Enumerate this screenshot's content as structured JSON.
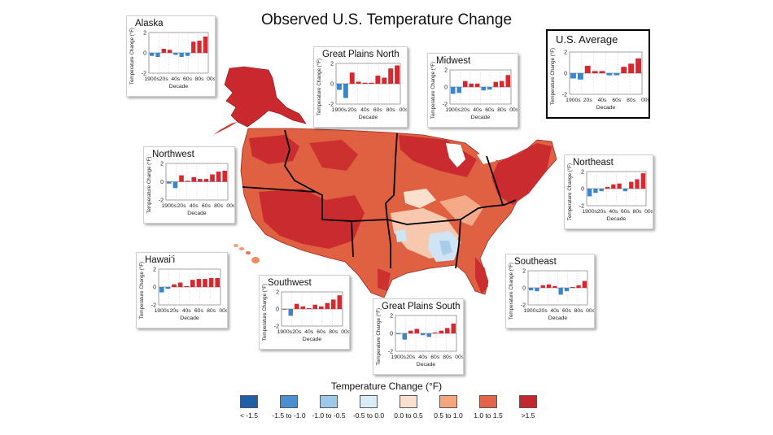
{
  "title": "Observed U.S. Temperature Change",
  "panels": [
    {
      "id": "alaska",
      "title": "Alaska",
      "ylabel": "Temperature Change (°F)",
      "xlabel": "Decade",
      "yticks": [
        "2",
        "0",
        "-2"
      ],
      "xticks": [
        "1900s",
        "20s",
        "40s",
        "60s",
        "80s",
        "00s"
      ],
      "values": [
        -0.3,
        -0.4,
        0.4,
        0.3,
        -0.2,
        -0.4,
        -0.3,
        1.1,
        1.2,
        1.6
      ]
    },
    {
      "id": "great-plains-north",
      "title": "Great Plains North",
      "ylabel": "Temperature Change (°F)",
      "xlabel": "Decade",
      "yticks": [
        "2",
        "0",
        "-2"
      ],
      "xticks": [
        "1900s",
        "20s",
        "40s",
        "60s",
        "80s",
        "00s"
      ],
      "values": [
        -0.6,
        -1.4,
        1.1,
        0.2,
        0.1,
        0.1,
        0.8,
        0.6,
        1.5,
        1.8
      ]
    },
    {
      "id": "midwest",
      "title": "Midwest",
      "ylabel": "Temperature Change (°F)",
      "xlabel": "Decade",
      "yticks": [
        "2",
        "0",
        "-2"
      ],
      "xticks": [
        "1900s",
        "20s",
        "40s",
        "60s",
        "80s",
        "00s"
      ],
      "values": [
        -0.8,
        -0.7,
        0.7,
        0.4,
        0.4,
        -0.4,
        -0.3,
        0.6,
        0.7,
        1.4
      ]
    },
    {
      "id": "us-average",
      "title": "U.S. Average",
      "ylabel": "Temperature Change (°F)",
      "xlabel": "Decade",
      "yticks": [
        "2",
        "0",
        "-2"
      ],
      "xticks": [
        "1900s",
        "20s",
        "40s",
        "60s",
        "80s",
        "00s"
      ],
      "values": [
        -0.5,
        -0.6,
        0.7,
        0.2,
        0.2,
        -0.2,
        -0.2,
        0.6,
        0.9,
        1.4
      ]
    },
    {
      "id": "northwest",
      "title": "Northwest",
      "ylabel": "Temperature Change (°F)",
      "xlabel": "Decade",
      "yticks": [
        "2",
        "0",
        "-2"
      ],
      "xticks": [
        "1900s",
        "20s",
        "40s",
        "60s",
        "80s",
        "00s"
      ],
      "values": [
        -0.2,
        -0.7,
        0.7,
        0.1,
        0.5,
        0.3,
        0.3,
        0.8,
        1.1,
        1.2
      ]
    },
    {
      "id": "northeast",
      "title": "Northeast",
      "ylabel": "Temperature Change (°F)",
      "xlabel": "Decade",
      "yticks": [
        "2",
        "0",
        "-2"
      ],
      "xticks": [
        "1900s",
        "20s",
        "40s",
        "60s",
        "80s",
        "00s"
      ],
      "values": [
        -0.9,
        -0.5,
        -0.3,
        0.2,
        0.5,
        0.6,
        -0.3,
        0.8,
        1.1,
        1.8
      ]
    },
    {
      "id": "hawaii",
      "title": "Hawai‘i",
      "ylabel": "Temperature Change (°F)",
      "xlabel": "Decade",
      "yticks": [
        "2",
        "0",
        "-2"
      ],
      "xticks": [
        "1900s",
        "20s",
        "40s",
        "60s",
        "80s",
        "00s"
      ],
      "values": [
        -0.6,
        -0.2,
        0.3,
        0.5,
        0.1,
        0.8,
        0.9,
        0.9,
        1.0,
        1.0
      ]
    },
    {
      "id": "southwest",
      "title": "Southwest",
      "ylabel": "Temperature Change (°F)",
      "xlabel": "Decade",
      "yticks": [
        "2",
        "0",
        "-2"
      ],
      "xticks": [
        "1900s",
        "20s",
        "40s",
        "60s",
        "80s",
        "00s"
      ],
      "values": [
        0.0,
        -0.8,
        0.6,
        0.3,
        0.1,
        0.5,
        0.3,
        0.7,
        1.1,
        1.6
      ]
    },
    {
      "id": "great-plains-south",
      "title": "Great Plains South",
      "ylabel": "Temperature Change (°F)",
      "xlabel": "Decade",
      "yticks": [
        "2",
        "0",
        "-2"
      ],
      "xticks": [
        "1900s",
        "20s",
        "40s",
        "60s",
        "80s",
        "00s"
      ],
      "values": [
        -0.1,
        -0.7,
        0.3,
        0.5,
        -0.2,
        -0.4,
        0.1,
        0.3,
        0.6,
        1.1
      ]
    },
    {
      "id": "southeast",
      "title": "Southeast",
      "ylabel": "Temperature Change (°F)",
      "xlabel": "Decade",
      "yticks": [
        "2",
        "0",
        "-2"
      ],
      "xticks": [
        "1900s",
        "20s",
        "40s",
        "60s",
        "80s",
        "00s"
      ],
      "values": [
        -0.3,
        -0.4,
        0.3,
        0.4,
        0.2,
        -0.8,
        -0.4,
        0.1,
        0.3,
        0.8
      ]
    }
  ],
  "legend": {
    "title": "Temperature Change (°F)",
    "items": [
      {
        "label": "< -1.5",
        "color": "#1f5fa8"
      },
      {
        "label": "-1.5 to -1.0",
        "color": "#4a90cf"
      },
      {
        "label": "-1.0 to -0.5",
        "color": "#9cc8ea"
      },
      {
        "label": "-0.5 to 0.0",
        "color": "#d9ecf8"
      },
      {
        "label": "0.0 to 0.5",
        "color": "#fbe0cf"
      },
      {
        "label": "0.5 to 1.0",
        "color": "#f5a67c"
      },
      {
        "label": "1.0 to 1.5",
        "color": "#e4644a"
      },
      {
        "label": ">1.5",
        "color": "#c1272d"
      }
    ]
  },
  "colors": {
    "positive": "#d6282e",
    "negative": "#3a86c8"
  }
}
